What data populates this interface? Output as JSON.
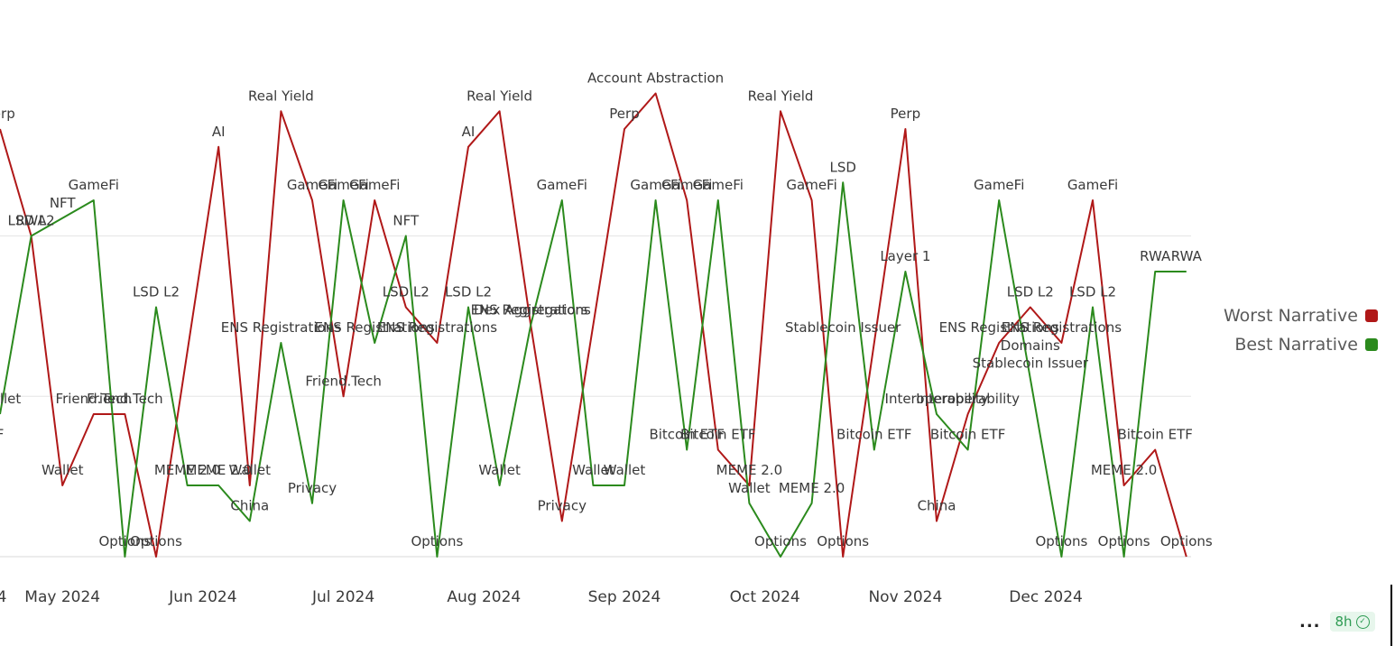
{
  "chart_data": {
    "type": "line",
    "categories_shown": [
      "...4",
      "May 2024",
      "Jun 2024",
      "Jul 2024",
      "Aug 2024",
      "Sep 2024",
      "Oct 2024",
      "Nov 2024",
      "Dec 2024"
    ],
    "x_ticks": [
      {
        "label": "4",
        "x": 0
      },
      {
        "label": "May 2024",
        "x": 2
      },
      {
        "label": "Jun 2024",
        "x": 6.5
      },
      {
        "label": "Jul 2024",
        "x": 11
      },
      {
        "label": "Aug 2024",
        "x": 15.5
      },
      {
        "label": "Sep 2024",
        "x": 20
      },
      {
        "label": "Oct 2024",
        "x": 24.5
      },
      {
        "label": "Nov 2024",
        "x": 29
      },
      {
        "label": "Dec 2024",
        "x": 33.5
      }
    ],
    "ylim": [
      0,
      12
    ],
    "series": [
      {
        "name": "Worst Narrative",
        "color": "#b01818",
        "points": [
          {
            "x": 0,
            "y": 12,
            "label": "Perp"
          },
          {
            "x": 1,
            "y": 9,
            "label": "LSD L2"
          },
          {
            "x": 2,
            "y": 2,
            "label": "Wallet"
          },
          {
            "x": 3,
            "y": 4,
            "label": "Friend.Tech"
          },
          {
            "x": 4,
            "y": 4,
            "label": "Friend.Tech"
          },
          {
            "x": 5,
            "y": 0,
            "label": "Options"
          },
          {
            "x": 7,
            "y": 11.5,
            "label": "AI"
          },
          {
            "x": 8,
            "y": 2,
            "label": "Wallet"
          },
          {
            "x": 9,
            "y": 12.5,
            "label": "Real Yield"
          },
          {
            "x": 10,
            "y": 10,
            "label": "GameFi"
          },
          {
            "x": 11,
            "y": 4.5,
            "label": "Friend.Tech"
          },
          {
            "x": 12,
            "y": 10,
            "label": "GameFi"
          },
          {
            "x": 13,
            "y": 7,
            "label": "LSD L2"
          },
          {
            "x": 14,
            "y": 6,
            "label": "ENS Registrations"
          },
          {
            "x": 15,
            "y": 11.5,
            "label": "AI"
          },
          {
            "x": 16,
            "y": 12.5,
            "label": "Real Yield"
          },
          {
            "x": 17,
            "y": 6.5,
            "label": "ENS Registrations"
          },
          {
            "x": 18,
            "y": 1,
            "label": "Privacy"
          },
          {
            "x": 20,
            "y": 12,
            "label": "Perp"
          },
          {
            "x": 21,
            "y": 13,
            "label": "Account Abstraction"
          },
          {
            "x": 22,
            "y": 10,
            "label": "GameFi"
          },
          {
            "x": 23,
            "y": 3,
            "label": "Bitcoin ETF"
          },
          {
            "x": 24,
            "y": 2,
            "label": "MEME 2.0"
          },
          {
            "x": 25,
            "y": 12.5,
            "label": "Real Yield"
          },
          {
            "x": 26,
            "y": 10,
            "label": "GameFi"
          },
          {
            "x": 27,
            "y": 0,
            "label": "Options"
          },
          {
            "x": 29,
            "y": 12,
            "label": "Perp"
          },
          {
            "x": 30,
            "y": 1,
            "label": "China"
          },
          {
            "x": 31,
            "y": 4,
            "label": "Interoperability"
          },
          {
            "x": 32,
            "y": 6,
            "label": "ENS Registrations"
          },
          {
            "x": 33,
            "y": 7,
            "label": "LSD L2"
          },
          {
            "x": 34,
            "y": 6,
            "label": "ENS Registrations"
          },
          {
            "x": 35,
            "y": 10,
            "label": "GameFi"
          },
          {
            "x": 36,
            "y": 2,
            "label": "MEME 2.0"
          },
          {
            "x": 37,
            "y": 3,
            "label": "Bitcoin ETF"
          },
          {
            "x": 38,
            "y": 0,
            "label": "Options"
          }
        ]
      },
      {
        "name": "Best Narrative",
        "color": "#2b8a1d",
        "points": [
          {
            "x": 0,
            "y": 4,
            "label": "Wallet"
          },
          {
            "x": 1,
            "y": 9,
            "label": "RWA"
          },
          {
            "x": 2,
            "y": 9.5,
            "label": "NFT"
          },
          {
            "x": 3,
            "y": 10,
            "label": "GameFi"
          },
          {
            "x": 4,
            "y": 0,
            "label": "Options"
          },
          {
            "x": 5,
            "y": 7,
            "label": "LSD L2"
          },
          {
            "x": 6,
            "y": 2,
            "label": "MEME 2.0"
          },
          {
            "x": 7,
            "y": 2,
            "label": "MEME 2.0"
          },
          {
            "x": 8,
            "y": 1,
            "label": "China"
          },
          {
            "x": 9,
            "y": 6,
            "label": "ENS Registrations"
          },
          {
            "x": 10,
            "y": 1.5,
            "label": "Privacy"
          },
          {
            "x": 11,
            "y": 10,
            "label": "GameFi"
          },
          {
            "x": 12,
            "y": 6,
            "label": "ENS Registrations"
          },
          {
            "x": 13,
            "y": 9,
            "label": "NFT"
          },
          {
            "x": 14,
            "y": 0,
            "label": "Options"
          },
          {
            "x": 15,
            "y": 7,
            "label": "LSD L2"
          },
          {
            "x": 16,
            "y": 2,
            "label": "Wallet"
          },
          {
            "x": 17,
            "y": 6.5,
            "label": "Dex Aggregators"
          },
          {
            "x": 18,
            "y": 10,
            "label": "GameFi"
          },
          {
            "x": 19,
            "y": 2,
            "label": "Wallet"
          },
          {
            "x": 20,
            "y": 2,
            "label": "Wallet"
          },
          {
            "x": 21,
            "y": 10,
            "label": "GameFi"
          },
          {
            "x": 22,
            "y": 3,
            "label": "Bitcoin ETF"
          },
          {
            "x": 23,
            "y": 10,
            "label": "GameFi"
          },
          {
            "x": 24,
            "y": 1.5,
            "label": "Wallet"
          },
          {
            "x": 25,
            "y": 0,
            "label": "Options"
          },
          {
            "x": 26,
            "y": 1.5,
            "label": "MEME 2.0"
          },
          {
            "x": 27,
            "y": 10.5,
            "label": "LSD"
          },
          {
            "x": 28,
            "y": 3,
            "label": "Bitcoin ETF"
          },
          {
            "x": 29,
            "y": 8,
            "label": "Layer 1"
          },
          {
            "x": 30,
            "y": 4,
            "label": "Interoperability"
          },
          {
            "x": 31,
            "y": 3,
            "label": "Bitcoin ETF"
          },
          {
            "x": 32,
            "y": 10,
            "label": "GameFi"
          },
          {
            "x": 33,
            "y": 5,
            "label": "Stablecoin Issuer"
          },
          {
            "x": 34,
            "y": 0,
            "label": "Options"
          },
          {
            "x": 35,
            "y": 7,
            "label": "LSD L2"
          },
          {
            "x": 36,
            "y": 0,
            "label": "Options"
          },
          {
            "x": 37,
            "y": 8,
            "label": "RWA"
          },
          {
            "x": 38,
            "y": 8,
            "label": "RWA"
          }
        ]
      }
    ],
    "extra_labels": [
      {
        "x": 0,
        "y": 3,
        "text": "F"
      },
      {
        "x": 33,
        "y": 5.5,
        "text": "Domains"
      },
      {
        "x": 27,
        "y": 6,
        "text": "Stablecoin Issuer"
      }
    ],
    "grid": true,
    "legend": {
      "placement": "right",
      "items": [
        {
          "label": "Worst Narrative",
          "color": "#b01818"
        },
        {
          "label": "Best Narrative",
          "color": "#2b8a1d"
        }
      ]
    }
  },
  "status": {
    "more": "...",
    "badge": "8h"
  }
}
